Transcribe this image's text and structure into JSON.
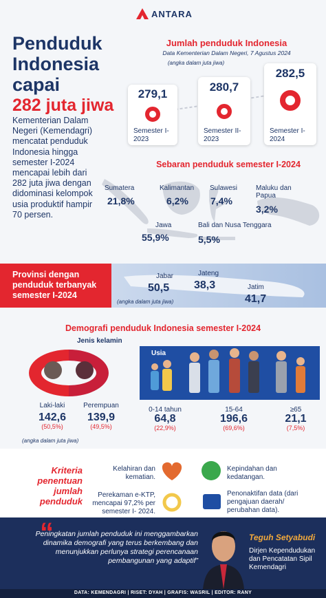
{
  "header": {
    "logo": "ANTARA",
    "title_lines": [
      "Penduduk",
      "Indonesia",
      "capai"
    ],
    "title_highlight": "282 juta jiwa"
  },
  "intro": "Kementerian Dalam Negeri (Kemendagri) mencatat penduduk Indonesia hingga semester I-2024 mencapai lebih dari 282 juta jiwa dengan didominasi kelompok usia produktif hampir 70 persen.",
  "population": {
    "title": "Jumlah penduduk Indonesia",
    "subtitle": "Data Kementerian Dalam Negeri, 7 Agustus 2024",
    "unit": "(angka dalam juta jiwa)",
    "items": [
      {
        "value": "279,1",
        "label": "Semester I-2023"
      },
      {
        "value": "280,7",
        "label": "Semester II-2023"
      },
      {
        "value": "282,5",
        "label": "Semester I-2024"
      }
    ]
  },
  "distribution": {
    "title": "Sebaran penduduk semester I-2024",
    "regions": [
      {
        "name": "Sumatera",
        "value": "21,8%"
      },
      {
        "name": "Kalimantan",
        "value": "6,2%"
      },
      {
        "name": "Sulawesi",
        "value": "7,4%"
      },
      {
        "name": "Maluku dan Papua",
        "value": "3,2%"
      },
      {
        "name": "Jawa",
        "value": "55,9%"
      },
      {
        "name": "Bali dan Nusa Tenggara",
        "value": "5,5%"
      }
    ]
  },
  "provinces": {
    "title": "Provinsi dengan penduduk terbanyak semester I-2024",
    "unit": "(angka dalam juta jiwa)",
    "items": [
      {
        "name": "Jabar",
        "value": "50,5"
      },
      {
        "name": "Jateng",
        "value": "38,3"
      },
      {
        "name": "Jatim",
        "value": "41,7"
      }
    ]
  },
  "demography": {
    "title": "Demografi penduduk Indonesia semester I-2024",
    "gender": {
      "title": "Jenis kelamin",
      "unit": "(angka dalam juta jiwa)",
      "items": [
        {
          "label": "Laki-laki",
          "value": "142,6",
          "share": "(50,5%)"
        },
        {
          "label": "Perempuan",
          "value": "139,9",
          "share": "(49,5%)"
        }
      ]
    },
    "age": {
      "title": "Usia",
      "items": [
        {
          "label": "0-14 tahun",
          "value": "64,8",
          "share": "(22,9%)"
        },
        {
          "label": "15-64",
          "value": "196,6",
          "share": "(69,6%)"
        },
        {
          "label": "≥65",
          "value": "21,1",
          "share": "(7,5%)"
        }
      ]
    }
  },
  "criteria": {
    "title": "Kriteria penentuan jumlah penduduk",
    "items": [
      "Kelahiran dan kematian.",
      "Kepindahan dan kedatangan.",
      "Perekaman e-KTP, mencapai 97,2% per semester I- 2024.",
      "Penonaktifan data (dari pengajuan daerah/ perubahan data)."
    ]
  },
  "quote": {
    "open": "“",
    "text": "Peningkatan jumlah penduduk ini menggambarkan dinamika demografi yang terus berkembang dan menunjukkan perlunya strategi perencanaan pembangunan yang adaptif”",
    "name": "Teguh Setyabudi",
    "role": "Dirjen Kependudukan dan Pencatatan Sipil Kemendagri"
  },
  "footer": "DATA: KEMENDAGRI | RISET: DYAH | GRAFIS: WASRIL | EDITOR: RANY"
}
